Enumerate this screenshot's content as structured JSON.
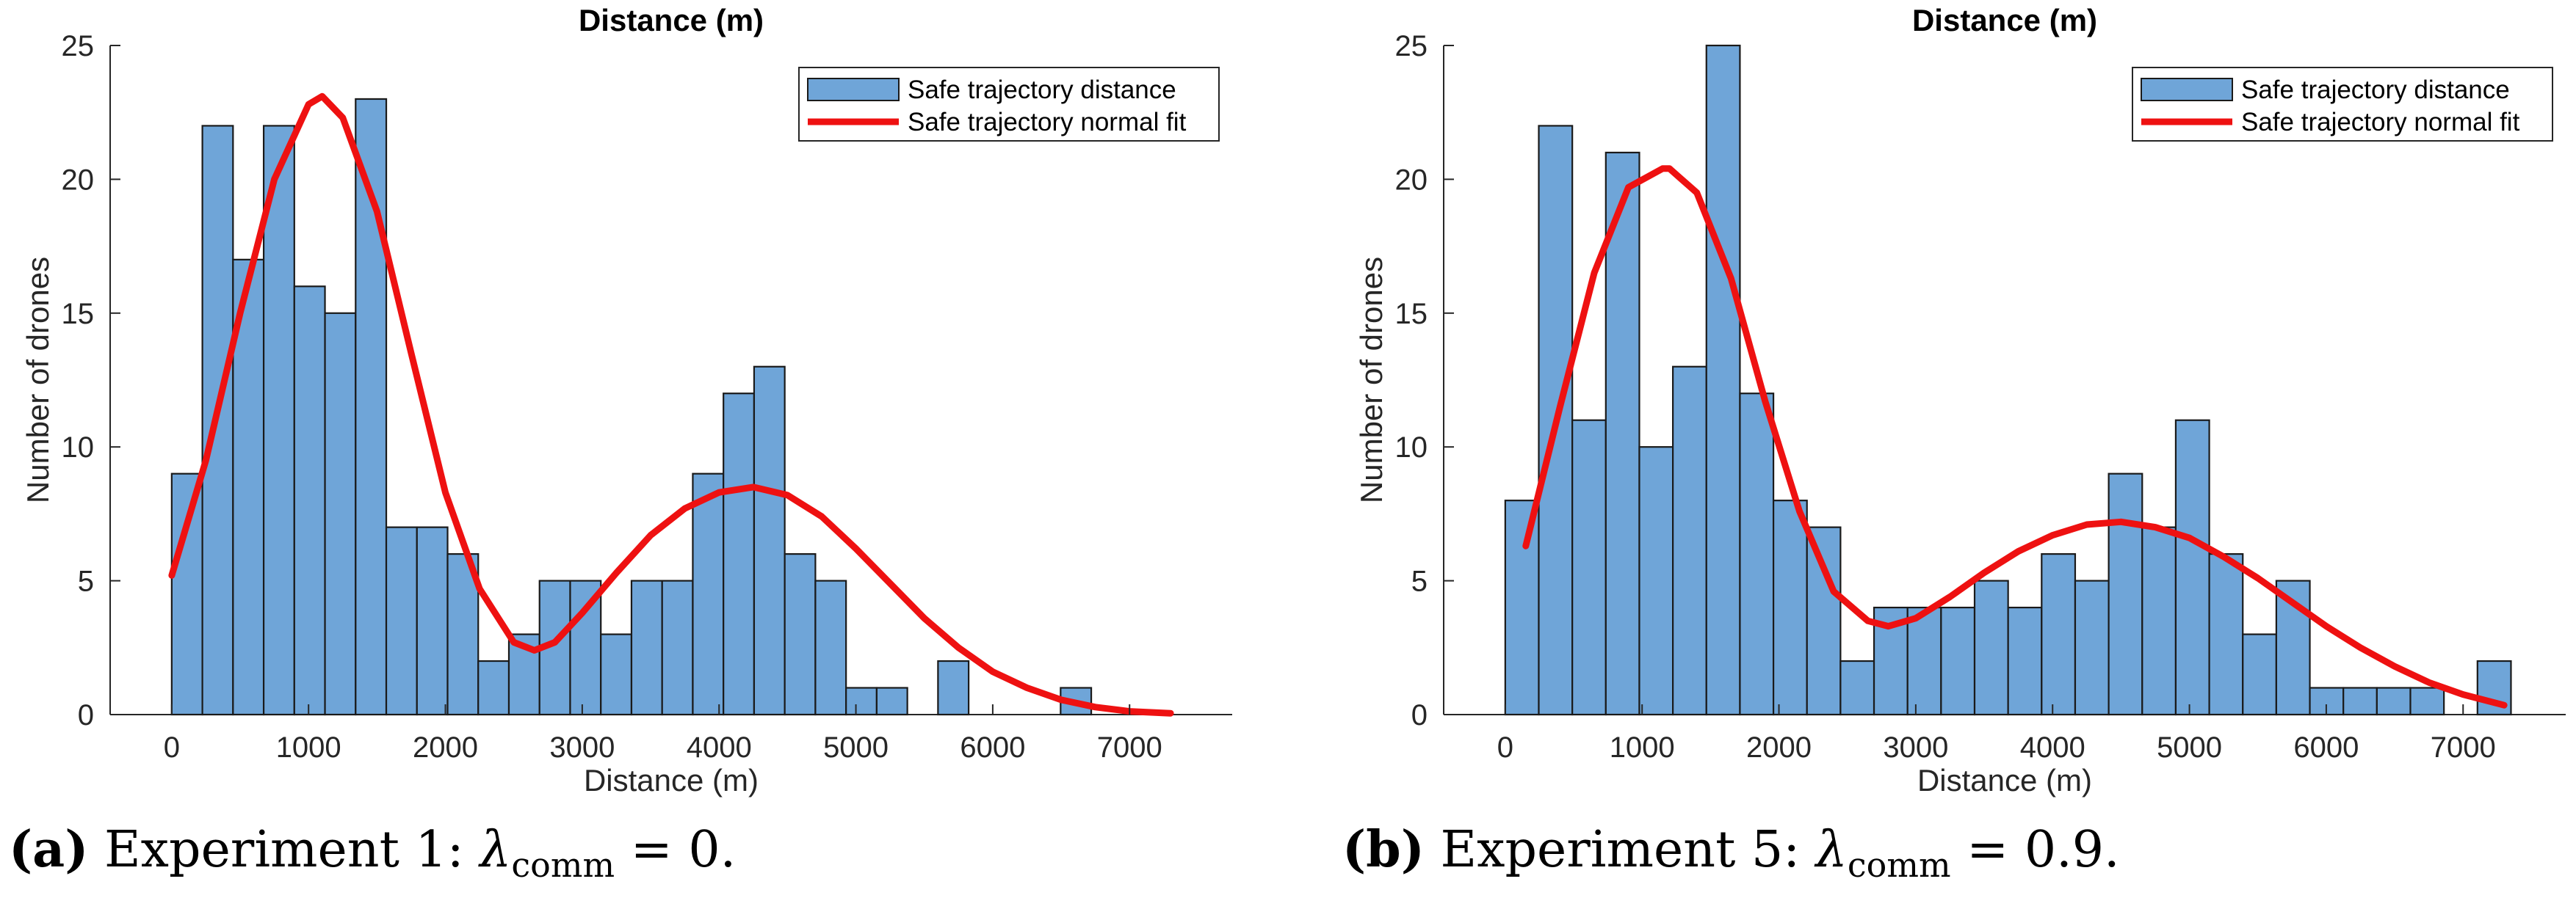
{
  "chart_data": [
    {
      "type": "bar",
      "panel": "a",
      "title": "Distance (m)",
      "xlabel": "Distance (m)",
      "ylabel": "Number of drones",
      "xlim": [
        -450,
        7750
      ],
      "ylim": [
        0,
        25
      ],
      "xticks": [
        0,
        1000,
        2000,
        3000,
        4000,
        5000,
        6000,
        7000
      ],
      "yticks": [
        0,
        5,
        10,
        15,
        20,
        25
      ],
      "bin_start": 0,
      "bin_width": 224,
      "values": [
        9,
        22,
        17,
        22,
        16,
        15,
        23,
        7,
        7,
        6,
        2,
        3,
        5,
        5,
        3,
        5,
        5,
        9,
        12,
        13,
        6,
        5,
        1,
        1,
        0,
        2,
        0,
        0,
        0,
        1
      ],
      "fit_x": [
        0,
        250,
        500,
        750,
        1000,
        1100,
        1250,
        1500,
        1750,
        2000,
        2250,
        2500,
        2650,
        2800,
        3000,
        3250,
        3500,
        3750,
        4000,
        4250,
        4500,
        4750,
        5000,
        5250,
        5500,
        5750,
        6000,
        6250,
        6500,
        6750,
        7000,
        7300
      ],
      "fit_y": [
        5.2,
        9.5,
        15,
        20,
        22.8,
        23.1,
        22.3,
        18.8,
        13.5,
        8.3,
        4.7,
        2.7,
        2.4,
        2.7,
        3.8,
        5.3,
        6.7,
        7.7,
        8.3,
        8.5,
        8.2,
        7.4,
        6.2,
        4.9,
        3.6,
        2.5,
        1.6,
        1.0,
        0.55,
        0.28,
        0.12,
        0.05
      ],
      "legend": [
        "Safe trajectory distance",
        "Safe trajectory normal fit"
      ],
      "legend_location": "top-right",
      "bar_color": "#6FA5D8",
      "fit_color": "#EE1111"
    },
    {
      "type": "bar",
      "panel": "b",
      "title": "Distance (m)",
      "xlabel": "Distance (m)",
      "ylabel": "Number of drones",
      "xlim": [
        -450,
        7750
      ],
      "ylim": [
        0,
        25
      ],
      "xticks": [
        0,
        1000,
        2000,
        3000,
        4000,
        5000,
        6000,
        7000
      ],
      "yticks": [
        0,
        5,
        10,
        15,
        20,
        25
      ],
      "bin_start": 0,
      "bin_width": 245,
      "values": [
        8,
        22,
        11,
        21,
        10,
        13,
        25,
        12,
        8,
        7,
        2,
        4,
        4,
        4,
        5,
        4,
        6,
        5,
        9,
        7,
        11,
        6,
        3,
        5,
        1,
        1,
        1,
        1,
        0,
        2
      ],
      "fit_x": [
        150,
        400,
        650,
        900,
        1150,
        1200,
        1400,
        1650,
        1900,
        2150,
        2400,
        2650,
        2800,
        3000,
        3250,
        3500,
        3750,
        4000,
        4250,
        4500,
        4750,
        5000,
        5250,
        5500,
        5750,
        6000,
        6250,
        6500,
        6750,
        7000,
        7300
      ],
      "fit_y": [
        6.3,
        11.5,
        16.5,
        19.7,
        20.4,
        20.4,
        19.5,
        16.3,
        11.7,
        7.6,
        4.6,
        3.5,
        3.3,
        3.6,
        4.4,
        5.3,
        6.1,
        6.7,
        7.1,
        7.2,
        7.0,
        6.6,
        5.9,
        5.1,
        4.2,
        3.3,
        2.5,
        1.8,
        1.2,
        0.75,
        0.35
      ],
      "legend": [
        "Safe trajectory distance",
        "Safe trajectory normal fit"
      ],
      "legend_location": "top-right",
      "bar_color": "#6FA5D8",
      "fit_color": "#EE1111"
    }
  ],
  "captions": [
    {
      "label": "(a)",
      "text": "Experiment 1: ",
      "symbol": "λ",
      "subscript": "comm",
      "rest": " = 0."
    },
    {
      "label": "(b)",
      "text": "Experiment 5: ",
      "symbol": "λ",
      "subscript": "comm",
      "rest": " = 0.9."
    }
  ]
}
